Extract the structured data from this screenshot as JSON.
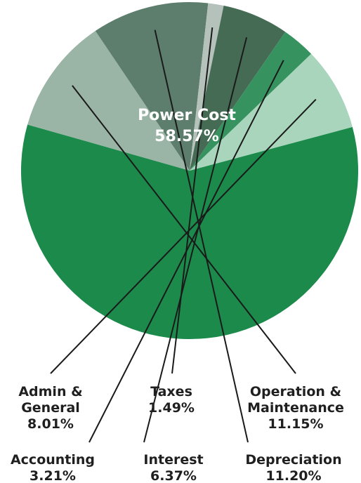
{
  "chart_data": {
    "type": "pie",
    "start_angle_deg": -15,
    "slices": [
      {
        "name": "Power Cost",
        "value": 58.57,
        "percent_label": "58.57%",
        "color": "#1b8a4b"
      },
      {
        "name": "Operation & Maintenance",
        "lines": [
          "Operation &",
          "Maintenance"
        ],
        "value": 11.15,
        "percent_label": "11.15%",
        "color": "#9ab4a6"
      },
      {
        "name": "Depreciation",
        "lines": [
          "Depreciation"
        ],
        "value": 11.2,
        "percent_label": "11.20%",
        "color": "#5d7e6d"
      },
      {
        "name": "Taxes",
        "lines": [
          "Taxes"
        ],
        "value": 1.49,
        "percent_label": "1.49%",
        "color": "#b5c1bb"
      },
      {
        "name": "Interest",
        "lines": [
          "Interest"
        ],
        "value": 6.37,
        "percent_label": "6.37%",
        "color": "#456b55"
      },
      {
        "name": "Accounting",
        "lines": [
          "Accounting"
        ],
        "value": 3.21,
        "percent_label": "3.21%",
        "color": "#36925f"
      },
      {
        "name": "Admin & General",
        "lines": [
          "Admin &",
          "General"
        ],
        "value": 8.01,
        "percent_label": "8.01%",
        "color": "#a8d5bc"
      }
    ]
  }
}
